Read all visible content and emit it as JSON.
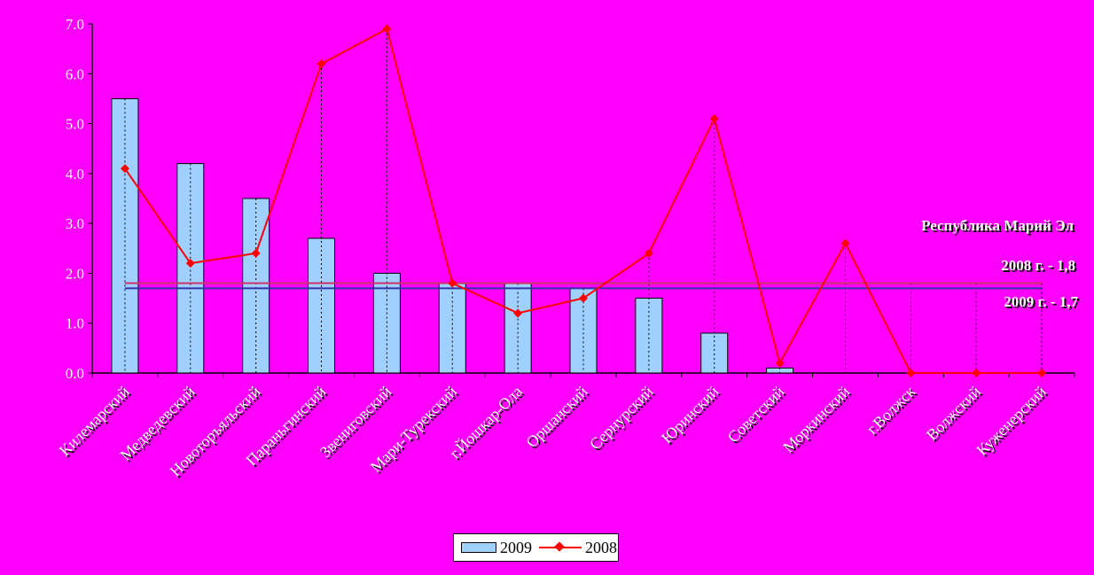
{
  "chart_data": {
    "type": "bar",
    "categories": [
      "Килемарский",
      "Медведевский",
      "Новоторъяльский",
      "Параньгинский",
      "Звениговский",
      "Мари-Турекский",
      "г.Йошкар-Ола",
      "Оршанский",
      "Сернурский",
      "Юринский",
      "Советский",
      "Моркинский",
      "г.Волжск",
      "Волжский",
      "Куженерский"
    ],
    "series": [
      {
        "name": "2009",
        "type": "bar",
        "color": "#9fd0ff",
        "values": [
          5.5,
          4.2,
          3.5,
          2.7,
          2.0,
          1.8,
          1.8,
          1.7,
          1.5,
          0.8,
          0.1,
          0.0,
          0.0,
          0.0,
          0.0
        ]
      },
      {
        "name": "2008",
        "type": "line",
        "color": "#ff0000",
        "values": [
          4.1,
          2.2,
          2.4,
          6.2,
          6.9,
          1.8,
          1.2,
          1.5,
          2.4,
          5.1,
          0.2,
          2.6,
          0.0,
          0.0,
          0.0
        ]
      }
    ],
    "reference_lines": [
      {
        "label": "2008 г. - 1,8",
        "value": 1.8,
        "color": "#cc3366"
      },
      {
        "label": "2009 г. - 1,7",
        "value": 1.7,
        "color": "#3333aa"
      }
    ],
    "annotation_title": "Республика Марий Эл",
    "ylim": [
      0,
      7
    ],
    "yticks": [
      "0.0",
      "1.0",
      "2.0",
      "3.0",
      "4.0",
      "5.0",
      "6.0",
      "7.0"
    ],
    "legend_position": "bottom",
    "grid": false
  }
}
